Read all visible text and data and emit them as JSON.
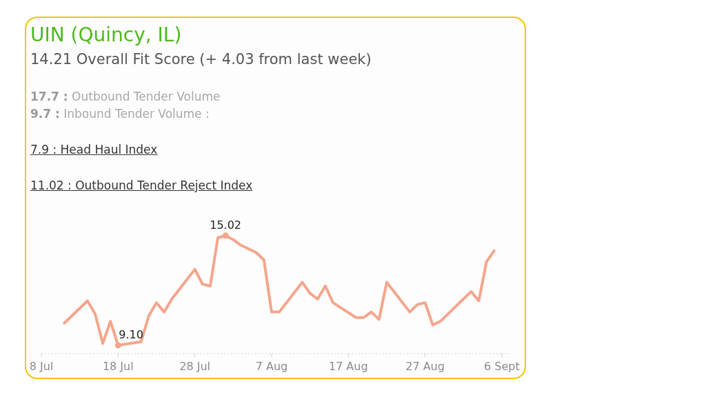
{
  "chart_data": {
    "type": "line",
    "title": "UIN (Quincy, IL)",
    "subtitle": "14.21 Overall Fit Score (+ 4.03 from last week)",
    "annotations": [
      "17.7 : Outbound Tender Volume",
      "9.7 : Inbound Tender Volume :",
      "7.9 : Head Haul Index",
      "11.02 : Outbound Tender Reject Index"
    ],
    "x": [
      "--07-11",
      "--07-14",
      "--07-15",
      "--07-16",
      "--07-17",
      "--07-18",
      "--07-21",
      "--07-22",
      "--07-23",
      "--07-24",
      "--07-25",
      "--07-28",
      "--07-29",
      "--07-30",
      "--07-31",
      "--08-01",
      "--08-02",
      "--08-03",
      "--08-04",
      "--08-05",
      "--08-06",
      "--08-07",
      "--08-08",
      "--08-11",
      "--08-12",
      "--08-13",
      "--08-14",
      "--08-15",
      "--08-18",
      "--08-19",
      "--08-20",
      "--08-21",
      "--08-22",
      "--08-25",
      "--08-26",
      "--08-27",
      "--08-28",
      "--08-29",
      "--09-02",
      "--09-03",
      "--09-04",
      "--09-05"
    ],
    "values": [
      10.3,
      11.5,
      10.8,
      9.2,
      10.4,
      9.1,
      9.3,
      10.7,
      11.4,
      10.9,
      11.6,
      13.2,
      12.4,
      12.3,
      14.9,
      15.02,
      14.8,
      14.5,
      14.3,
      14.1,
      13.7,
      10.9,
      10.9,
      12.5,
      11.9,
      11.6,
      12.3,
      11.4,
      10.6,
      10.6,
      10.9,
      10.5,
      12.5,
      10.9,
      11.3,
      11.4,
      10.2,
      10.4,
      12.0,
      11.5,
      13.6,
      14.2
    ],
    "value_labels": [
      null,
      null,
      null,
      null,
      null,
      "9.10",
      null,
      null,
      null,
      null,
      null,
      null,
      null,
      null,
      null,
      "15.02",
      null,
      null,
      null,
      null,
      null,
      null,
      null,
      null,
      null,
      null,
      null,
      null,
      null,
      null,
      null,
      null,
      null,
      null,
      null,
      null,
      null,
      null,
      null,
      null,
      null,
      null
    ],
    "color": "#f4a58c",
    "xlim": [
      "--07-08",
      "--09-07"
    ],
    "xticks": [
      {
        "value": "--07-08",
        "label": "8 Jul"
      },
      {
        "value": "--07-18",
        "label": "18 Jul"
      },
      {
        "value": "--07-28",
        "label": "28 Jul"
      },
      {
        "value": "--08-07",
        "label": "7 Aug"
      },
      {
        "value": "--08-17",
        "label": "17 Aug"
      },
      {
        "value": "--08-27",
        "label": "27 Aug"
      },
      {
        "value": "--09-06",
        "label": "6 Sept"
      }
    ]
  }
}
